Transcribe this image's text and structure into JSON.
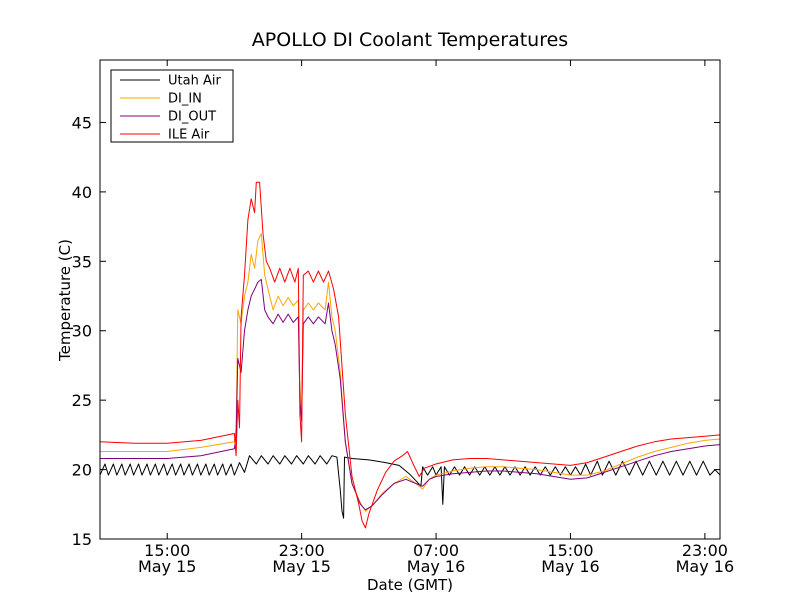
{
  "chart_data": {
    "type": "line",
    "title": "APOLLO DI Coolant Temperatures",
    "xlabel": "Date (GMT)",
    "ylabel": "Temperature (C)",
    "x_unit": "hours since 2015-05-15 11:00 GMT",
    "xlim": [
      0,
      36.9
    ],
    "ylim": [
      15,
      49.5
    ],
    "yticks": [
      15,
      20,
      25,
      30,
      35,
      40,
      45
    ],
    "xticks": [
      {
        "x": 4,
        "time": "15:00",
        "date": "May 15"
      },
      {
        "x": 12,
        "time": "23:00",
        "date": "May 15"
      },
      {
        "x": 20,
        "time": "07:00",
        "date": "May 16"
      },
      {
        "x": 28,
        "time": "15:00",
        "date": "May 16"
      },
      {
        "x": 36,
        "time": "23:00",
        "date": "May 16"
      }
    ],
    "legend_position": "top-left",
    "series": [
      {
        "name": "Utah Air",
        "color": "#000000",
        "points": [
          [
            0,
            19.6
          ],
          [
            0.3,
            20.4
          ],
          [
            0.5,
            19.6
          ],
          [
            0.8,
            20.4
          ],
          [
            1.0,
            19.6
          ],
          [
            1.3,
            20.4
          ],
          [
            1.5,
            19.6
          ],
          [
            1.8,
            20.4
          ],
          [
            2.0,
            19.6
          ],
          [
            2.3,
            20.4
          ],
          [
            2.5,
            19.6
          ],
          [
            2.8,
            20.4
          ],
          [
            3.0,
            19.6
          ],
          [
            3.3,
            20.4
          ],
          [
            3.5,
            19.6
          ],
          [
            3.8,
            20.4
          ],
          [
            4.0,
            19.6
          ],
          [
            4.3,
            20.4
          ],
          [
            4.5,
            19.6
          ],
          [
            4.8,
            20.4
          ],
          [
            5.0,
            19.6
          ],
          [
            5.3,
            20.4
          ],
          [
            5.5,
            19.6
          ],
          [
            5.8,
            20.4
          ],
          [
            6.0,
            19.6
          ],
          [
            6.3,
            20.4
          ],
          [
            6.5,
            19.6
          ],
          [
            6.8,
            20.4
          ],
          [
            7.0,
            19.6
          ],
          [
            7.3,
            20.4
          ],
          [
            7.5,
            19.6
          ],
          [
            7.8,
            20.4
          ],
          [
            8.0,
            19.6
          ],
          [
            8.3,
            20.5
          ],
          [
            8.6,
            19.8
          ],
          [
            8.9,
            21.0
          ],
          [
            9.3,
            20.4
          ],
          [
            9.6,
            21.0
          ],
          [
            10.0,
            20.4
          ],
          [
            10.3,
            21.0
          ],
          [
            10.7,
            20.4
          ],
          [
            11.0,
            21.0
          ],
          [
            11.4,
            20.4
          ],
          [
            11.7,
            21.0
          ],
          [
            12.1,
            20.4
          ],
          [
            12.4,
            21.0
          ],
          [
            12.8,
            20.4
          ],
          [
            13.1,
            21.0
          ],
          [
            13.5,
            20.4
          ],
          [
            13.8,
            21.0
          ],
          [
            14.1,
            20.9
          ],
          [
            14.3,
            18.5
          ],
          [
            14.4,
            17.0
          ],
          [
            14.5,
            16.5
          ],
          [
            14.55,
            20.9
          ],
          [
            15.0,
            20.8
          ],
          [
            16.0,
            20.7
          ],
          [
            17.0,
            20.5
          ],
          [
            17.8,
            20.3
          ],
          [
            18.4,
            19.7
          ],
          [
            18.8,
            19.2
          ],
          [
            19.1,
            18.8
          ],
          [
            19.2,
            20.2
          ],
          [
            19.5,
            19.6
          ],
          [
            19.8,
            20.2
          ],
          [
            20.0,
            19.6
          ],
          [
            20.3,
            20.2
          ],
          [
            20.4,
            17.5
          ],
          [
            20.5,
            20.2
          ],
          [
            20.8,
            19.6
          ],
          [
            21.1,
            20.2
          ],
          [
            21.4,
            19.6
          ],
          [
            21.7,
            20.2
          ],
          [
            22.0,
            19.6
          ],
          [
            22.3,
            20.2
          ],
          [
            22.6,
            19.6
          ],
          [
            22.9,
            20.2
          ],
          [
            23.2,
            19.6
          ],
          [
            23.5,
            20.2
          ],
          [
            23.8,
            19.6
          ],
          [
            24.1,
            20.2
          ],
          [
            24.4,
            19.6
          ],
          [
            24.7,
            20.2
          ],
          [
            25.0,
            19.6
          ],
          [
            25.3,
            20.2
          ],
          [
            25.6,
            19.6
          ],
          [
            25.9,
            20.2
          ],
          [
            26.2,
            19.6
          ],
          [
            26.5,
            20.2
          ],
          [
            26.8,
            19.6
          ],
          [
            27.1,
            20.2
          ],
          [
            27.4,
            19.6
          ],
          [
            27.7,
            20.2
          ],
          [
            28.0,
            19.6
          ],
          [
            28.3,
            20.2
          ],
          [
            28.6,
            19.6
          ],
          [
            28.9,
            20.4
          ],
          [
            29.2,
            19.6
          ],
          [
            29.6,
            20.6
          ],
          [
            29.9,
            19.6
          ],
          [
            30.3,
            20.6
          ],
          [
            30.7,
            19.6
          ],
          [
            31.1,
            20.6
          ],
          [
            31.5,
            19.6
          ],
          [
            31.9,
            20.6
          ],
          [
            32.3,
            19.6
          ],
          [
            32.7,
            20.6
          ],
          [
            33.1,
            19.6
          ],
          [
            33.5,
            20.6
          ],
          [
            33.9,
            19.6
          ],
          [
            34.3,
            20.6
          ],
          [
            34.7,
            19.6
          ],
          [
            35.1,
            20.6
          ],
          [
            35.5,
            19.6
          ],
          [
            35.9,
            20.6
          ],
          [
            36.3,
            19.6
          ],
          [
            36.6,
            20.0
          ],
          [
            36.9,
            19.6
          ]
        ]
      },
      {
        "name": "DI_IN",
        "color": "#ffa500",
        "points": [
          [
            0,
            21.3
          ],
          [
            2,
            21.3
          ],
          [
            4,
            21.3
          ],
          [
            6,
            21.6
          ],
          [
            8,
            22.0
          ],
          [
            8.1,
            23.0
          ],
          [
            8.2,
            31.5
          ],
          [
            8.4,
            30.5
          ],
          [
            8.6,
            32.5
          ],
          [
            8.8,
            33.5
          ],
          [
            9.0,
            35.5
          ],
          [
            9.2,
            34.5
          ],
          [
            9.4,
            36.5
          ],
          [
            9.6,
            37.0
          ],
          [
            9.8,
            34.0
          ],
          [
            10.0,
            33.0
          ],
          [
            10.3,
            31.5
          ],
          [
            10.6,
            32.5
          ],
          [
            10.9,
            31.8
          ],
          [
            11.2,
            32.4
          ],
          [
            11.5,
            31.8
          ],
          [
            11.8,
            32.2
          ],
          [
            11.9,
            26.0
          ],
          [
            12.0,
            24.0
          ],
          [
            12.1,
            31.5
          ],
          [
            12.4,
            32.0
          ],
          [
            12.7,
            31.5
          ],
          [
            13.0,
            32.0
          ],
          [
            13.4,
            31.5
          ],
          [
            13.6,
            33.5
          ],
          [
            13.8,
            31.0
          ],
          [
            14.0,
            30.0
          ],
          [
            14.3,
            27.0
          ],
          [
            14.6,
            22.0
          ],
          [
            15.0,
            19.0
          ],
          [
            15.5,
            17.6
          ],
          [
            15.8,
            17.0
          ],
          [
            16.2,
            17.4
          ],
          [
            16.8,
            18.3
          ],
          [
            17.5,
            19.0
          ],
          [
            18.2,
            19.5
          ],
          [
            18.8,
            19.0
          ],
          [
            19.2,
            18.6
          ],
          [
            19.6,
            19.3
          ],
          [
            20,
            19.6
          ],
          [
            21,
            19.9
          ],
          [
            22,
            20.1
          ],
          [
            23,
            20.2
          ],
          [
            24,
            20.2
          ],
          [
            25,
            20.1
          ],
          [
            26,
            20.0
          ],
          [
            27,
            19.8
          ],
          [
            28,
            19.6
          ],
          [
            29,
            19.6
          ],
          [
            30,
            19.9
          ],
          [
            31,
            20.4
          ],
          [
            32,
            20.9
          ],
          [
            33,
            21.3
          ],
          [
            34,
            21.6
          ],
          [
            35,
            21.9
          ],
          [
            36,
            22.1
          ],
          [
            36.9,
            22.2
          ]
        ]
      },
      {
        "name": "DI_OUT",
        "color": "#800080",
        "points": [
          [
            0,
            20.8
          ],
          [
            2,
            20.8
          ],
          [
            4,
            20.8
          ],
          [
            6,
            21.0
          ],
          [
            8,
            21.5
          ],
          [
            8.1,
            22.5
          ],
          [
            8.2,
            28.0
          ],
          [
            8.4,
            27.0
          ],
          [
            8.6,
            30.0
          ],
          [
            8.8,
            31.5
          ],
          [
            9.0,
            32.5
          ],
          [
            9.2,
            33.0
          ],
          [
            9.4,
            33.5
          ],
          [
            9.6,
            33.7
          ],
          [
            9.8,
            31.5
          ],
          [
            10.0,
            31.0
          ],
          [
            10.3,
            30.5
          ],
          [
            10.6,
            31.2
          ],
          [
            10.9,
            30.6
          ],
          [
            11.2,
            31.2
          ],
          [
            11.5,
            30.6
          ],
          [
            11.8,
            31.0
          ],
          [
            11.9,
            25.0
          ],
          [
            12.0,
            23.5
          ],
          [
            12.1,
            30.5
          ],
          [
            12.4,
            31.0
          ],
          [
            12.7,
            30.5
          ],
          [
            13.0,
            31.0
          ],
          [
            13.4,
            30.5
          ],
          [
            13.6,
            32.0
          ],
          [
            13.8,
            30.0
          ],
          [
            14.0,
            29.0
          ],
          [
            14.3,
            26.5
          ],
          [
            14.6,
            22.0
          ],
          [
            15.0,
            19.0
          ],
          [
            15.5,
            17.5
          ],
          [
            15.8,
            17.1
          ],
          [
            16.2,
            17.4
          ],
          [
            16.8,
            18.2
          ],
          [
            17.5,
            19.0
          ],
          [
            18.2,
            19.3
          ],
          [
            18.8,
            19.0
          ],
          [
            19.2,
            18.8
          ],
          [
            19.6,
            19.3
          ],
          [
            20,
            19.5
          ],
          [
            21,
            19.7
          ],
          [
            22,
            19.8
          ],
          [
            23,
            19.9
          ],
          [
            24,
            19.9
          ],
          [
            25,
            19.8
          ],
          [
            26,
            19.7
          ],
          [
            27,
            19.5
          ],
          [
            28,
            19.3
          ],
          [
            29,
            19.4
          ],
          [
            30,
            19.8
          ],
          [
            31,
            20.2
          ],
          [
            32,
            20.6
          ],
          [
            33,
            21.0
          ],
          [
            34,
            21.3
          ],
          [
            35,
            21.5
          ],
          [
            36,
            21.7
          ],
          [
            36.9,
            21.8
          ]
        ]
      },
      {
        "name": "ILE Air",
        "color": "#ff0000",
        "points": [
          [
            0,
            22.0
          ],
          [
            2,
            21.9
          ],
          [
            4,
            21.9
          ],
          [
            6,
            22.1
          ],
          [
            8,
            22.6
          ],
          [
            8.1,
            21.0
          ],
          [
            8.2,
            25.0
          ],
          [
            8.3,
            23.0
          ],
          [
            8.4,
            31.0
          ],
          [
            8.6,
            34.0
          ],
          [
            8.8,
            38.0
          ],
          [
            9.0,
            39.5
          ],
          [
            9.2,
            38.5
          ],
          [
            9.3,
            40.7
          ],
          [
            9.5,
            40.7
          ],
          [
            9.7,
            37.0
          ],
          [
            9.9,
            35.0
          ],
          [
            10.1,
            34.5
          ],
          [
            10.4,
            33.5
          ],
          [
            10.7,
            34.5
          ],
          [
            11.0,
            33.5
          ],
          [
            11.3,
            34.5
          ],
          [
            11.6,
            33.5
          ],
          [
            11.8,
            34.5
          ],
          [
            11.9,
            24.0
          ],
          [
            12.0,
            22.0
          ],
          [
            12.1,
            34.0
          ],
          [
            12.4,
            34.3
          ],
          [
            12.7,
            33.5
          ],
          [
            13.0,
            34.3
          ],
          [
            13.3,
            33.5
          ],
          [
            13.6,
            34.3
          ],
          [
            13.9,
            33.0
          ],
          [
            14.2,
            31.0
          ],
          [
            14.6,
            24.0
          ],
          [
            15.0,
            19.5
          ],
          [
            15.4,
            17.5
          ],
          [
            15.6,
            16.3
          ],
          [
            15.8,
            15.8
          ],
          [
            16.0,
            16.8
          ],
          [
            16.5,
            18.5
          ],
          [
            17.0,
            19.8
          ],
          [
            17.5,
            20.6
          ],
          [
            18.0,
            21.0
          ],
          [
            18.3,
            21.3
          ],
          [
            18.6,
            20.5
          ],
          [
            19.0,
            19.5
          ],
          [
            19.3,
            20.1
          ],
          [
            20,
            20.4
          ],
          [
            21,
            20.7
          ],
          [
            22,
            20.8
          ],
          [
            23,
            20.8
          ],
          [
            24,
            20.7
          ],
          [
            25,
            20.6
          ],
          [
            26,
            20.5
          ],
          [
            27,
            20.4
          ],
          [
            28,
            20.3
          ],
          [
            29,
            20.5
          ],
          [
            30,
            20.9
          ],
          [
            31,
            21.3
          ],
          [
            32,
            21.7
          ],
          [
            33,
            22.0
          ],
          [
            34,
            22.2
          ],
          [
            35,
            22.3
          ],
          [
            36,
            22.4
          ],
          [
            36.9,
            22.5
          ]
        ]
      }
    ]
  }
}
